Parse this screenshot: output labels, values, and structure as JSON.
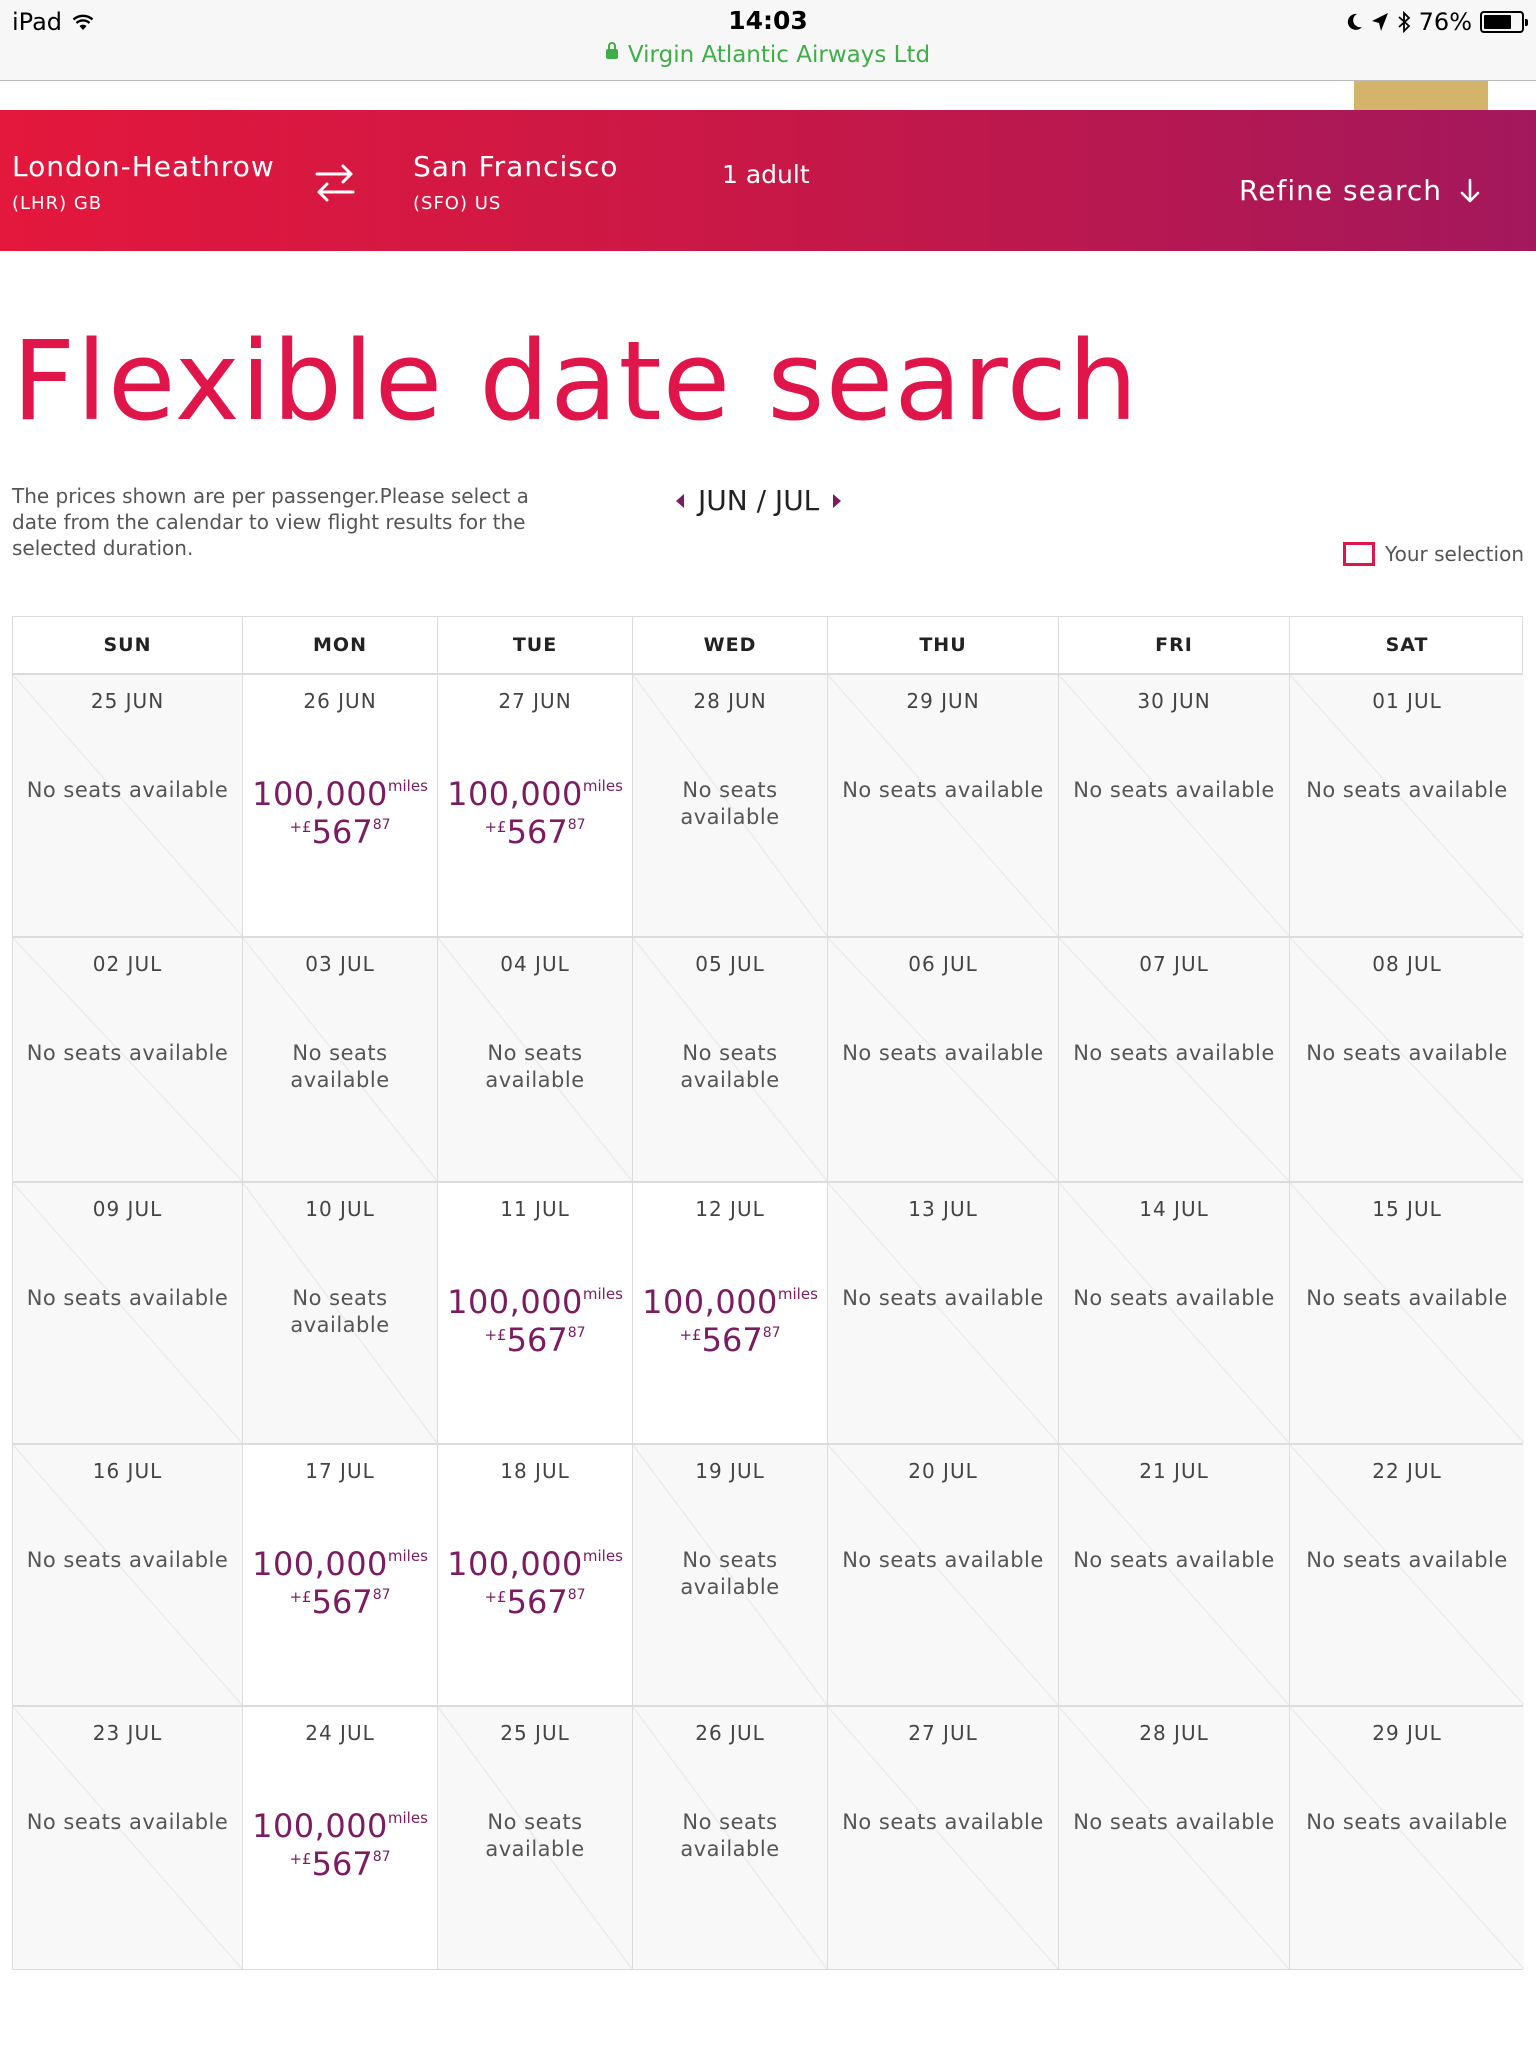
{
  "status_bar": {
    "device": "iPad",
    "time": "14:03",
    "url_label": "Virgin Atlantic Airways Ltd",
    "battery": "76%"
  },
  "search": {
    "from_city": "London-Heathrow",
    "from_code": "(LHR) GB",
    "to_city": "San Francisco",
    "to_code": "(SFO) US",
    "passengers": "1 adult",
    "refine_label": "Refine search"
  },
  "page": {
    "title": "Flexible date search",
    "intro": "The prices shown are per passenger.Please select a date from the calendar to view flight results for the selected duration.",
    "month_label": "JUN / JUL",
    "legend_label": "Your selection"
  },
  "colors": {
    "brand_red": "#e0164a",
    "brand_purple": "#7b1c62",
    "banner_start": "#e4173c",
    "banner_end": "#a3185c"
  },
  "calendar": {
    "weekdays": [
      "SUN",
      "MON",
      "TUE",
      "WED",
      "THU",
      "FRI",
      "SAT"
    ],
    "no_seats_label": "No seats available",
    "miles_value": "100,000",
    "miles_unit": "miles",
    "fee_prefix": "+£",
    "fee_amount": "567",
    "fee_pence": "87",
    "weeks": [
      [
        "25 JUN",
        "26 JUN",
        "27 JUN",
        "28 JUN",
        "29 JUN",
        "30 JUN",
        "01 JUL"
      ],
      [
        "02 JUL",
        "03 JUL",
        "04 JUL",
        "05 JUL",
        "06 JUL",
        "07 JUL",
        "08 JUL"
      ],
      [
        "09 JUL",
        "10 JUL",
        "11 JUL",
        "12 JUL",
        "13 JUL",
        "14 JUL",
        "15 JUL"
      ],
      [
        "16 JUL",
        "17 JUL",
        "18 JUL",
        "19 JUL",
        "20 JUL",
        "21 JUL",
        "22 JUL"
      ],
      [
        "23 JUL",
        "24 JUL",
        "25 JUL",
        "26 JUL",
        "27 JUL",
        "28 JUL",
        "29 JUL"
      ]
    ],
    "available": [
      [
        false,
        true,
        true,
        false,
        false,
        false,
        false
      ],
      [
        false,
        false,
        false,
        false,
        false,
        false,
        false
      ],
      [
        false,
        false,
        true,
        true,
        false,
        false,
        false
      ],
      [
        false,
        true,
        true,
        false,
        false,
        false,
        false
      ],
      [
        false,
        true,
        false,
        false,
        false,
        false,
        false
      ]
    ]
  }
}
